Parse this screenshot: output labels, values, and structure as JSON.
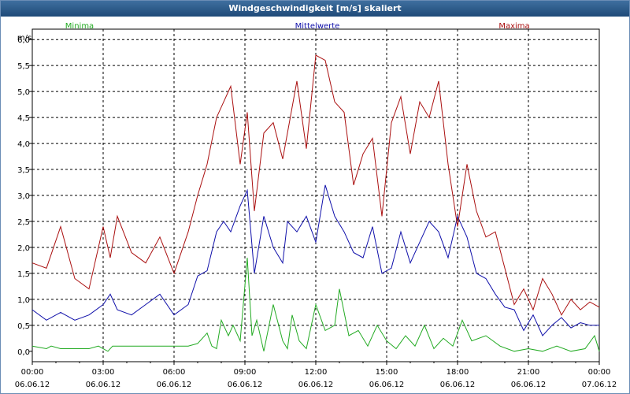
{
  "window": {
    "title": "Windgeschwindigkeit [m/s] skaliert"
  },
  "chart_data": {
    "type": "line",
    "title": "Windgeschwindigkeit [m/s] skaliert",
    "ylabel": "m/s",
    "ylim": [
      -0.2,
      6.2
    ],
    "xlim": [
      0,
      24
    ],
    "grid": true,
    "legend_position": "top",
    "y_ticks": [
      "0,0",
      "0,5",
      "1,0",
      "1,5",
      "2,0",
      "2,5",
      "3,0",
      "3,5",
      "4,0",
      "4,5",
      "5,0",
      "5,5",
      "6,0"
    ],
    "x_ticks": [
      {
        "time": "00:00",
        "date": "06.06.12"
      },
      {
        "time": "03:00",
        "date": "06.06.12"
      },
      {
        "time": "06:00",
        "date": "06.06.12"
      },
      {
        "time": "09:00",
        "date": "06.06.12"
      },
      {
        "time": "12:00",
        "date": "06.06.12"
      },
      {
        "time": "15:00",
        "date": "06.06.12"
      },
      {
        "time": "18:00",
        "date": "06.06.12"
      },
      {
        "time": "21:00",
        "date": "06.06.12"
      },
      {
        "time": "00:00",
        "date": "07.06.12"
      }
    ],
    "series": [
      {
        "name": "Minima",
        "color": "#22aa22",
        "x": [
          0,
          0.6,
          0.8,
          1.2,
          2.4,
          2.8,
          3.2,
          3.4,
          4,
          5,
          6,
          6.6,
          7,
          7.4,
          7.6,
          7.8,
          8,
          8.3,
          8.5,
          8.8,
          9.1,
          9.3,
          9.5,
          9.8,
          10.2,
          10.6,
          10.8,
          11,
          11.3,
          11.6,
          12,
          12.4,
          12.8,
          13,
          13.4,
          13.8,
          14.2,
          14.6,
          15,
          15.4,
          15.8,
          16.2,
          16.6,
          17,
          17.4,
          17.8,
          18.2,
          18.6,
          19.2,
          19.8,
          20.4,
          21,
          21.6,
          22.2,
          22.8,
          23.4,
          23.8,
          24
        ],
        "values": [
          0.1,
          0.05,
          0.1,
          0.05,
          0.05,
          0.1,
          0,
          0.1,
          0.1,
          0.1,
          0.1,
          0.1,
          0.15,
          0.35,
          0.1,
          0.05,
          0.6,
          0.3,
          0.5,
          0.2,
          1.8,
          0.3,
          0.6,
          0,
          0.9,
          0.2,
          0.05,
          0.7,
          0.2,
          0.05,
          0.9,
          0.4,
          0.5,
          1.2,
          0.3,
          0.4,
          0.1,
          0.5,
          0.2,
          0.05,
          0.3,
          0.1,
          0.5,
          0.05,
          0.25,
          0.1,
          0.6,
          0.2,
          0.3,
          0.1,
          0,
          0.05,
          0,
          0.1,
          0,
          0.05,
          0.3,
          0
        ]
      },
      {
        "name": "Mittelwerte",
        "color": "#1010aa",
        "x": [
          0,
          0.6,
          1.2,
          1.8,
          2.4,
          3,
          3.3,
          3.6,
          4.2,
          4.8,
          5.4,
          6,
          6.6,
          7,
          7.4,
          7.8,
          8.1,
          8.4,
          8.8,
          9.1,
          9.4,
          9.8,
          10.2,
          10.6,
          10.8,
          11.2,
          11.6,
          12,
          12.4,
          12.8,
          13.2,
          13.6,
          14,
          14.4,
          14.8,
          15.2,
          15.6,
          16,
          16.4,
          16.8,
          17.2,
          17.6,
          18,
          18.4,
          18.8,
          19.2,
          19.6,
          20,
          20.4,
          20.8,
          21.2,
          21.6,
          22,
          22.4,
          22.8,
          23.2,
          23.6,
          24
        ],
        "values": [
          0.8,
          0.6,
          0.75,
          0.6,
          0.7,
          0.9,
          1.1,
          0.8,
          0.7,
          0.9,
          1.1,
          0.7,
          0.9,
          1.45,
          1.55,
          2.3,
          2.5,
          2.3,
          2.8,
          3.1,
          1.5,
          2.6,
          2.0,
          1.7,
          2.5,
          2.3,
          2.6,
          2.1,
          3.2,
          2.6,
          2.3,
          1.9,
          1.8,
          2.4,
          1.5,
          1.6,
          2.3,
          1.7,
          2.1,
          2.5,
          2.3,
          1.8,
          2.6,
          2.2,
          1.5,
          1.4,
          1.1,
          0.85,
          0.8,
          0.4,
          0.7,
          0.3,
          0.5,
          0.65,
          0.45,
          0.55,
          0.5,
          0.5
        ]
      },
      {
        "name": "Maxima",
        "color": "#aa1010",
        "x": [
          0,
          0.6,
          1.2,
          1.8,
          2.4,
          3,
          3.3,
          3.6,
          4.2,
          4.8,
          5.4,
          6,
          6.6,
          7,
          7.4,
          7.8,
          8.1,
          8.4,
          8.8,
          9.1,
          9.4,
          9.8,
          10.2,
          10.6,
          10.8,
          11.2,
          11.6,
          12,
          12.4,
          12.8,
          13.2,
          13.6,
          14,
          14.4,
          14.8,
          15.2,
          15.6,
          16,
          16.4,
          16.8,
          17.2,
          17.6,
          18,
          18.4,
          18.8,
          19.2,
          19.6,
          20,
          20.4,
          20.8,
          21.2,
          21.6,
          22,
          22.4,
          22.8,
          23.2,
          23.6,
          24
        ],
        "values": [
          1.7,
          1.6,
          2.4,
          1.4,
          1.2,
          2.4,
          1.8,
          2.6,
          1.9,
          1.7,
          2.2,
          1.5,
          2.3,
          3.0,
          3.6,
          4.5,
          4.8,
          5.1,
          3.6,
          4.6,
          2.7,
          4.2,
          4.4,
          3.7,
          4.2,
          5.2,
          3.9,
          5.7,
          5.6,
          4.8,
          4.6,
          3.2,
          3.8,
          4.1,
          2.6,
          4.4,
          4.9,
          3.8,
          4.8,
          4.5,
          5.2,
          3.6,
          2.4,
          3.6,
          2.7,
          2.2,
          2.3,
          1.6,
          0.9,
          1.2,
          0.8,
          1.4,
          1.1,
          0.7,
          1.0,
          0.8,
          0.95,
          0.85
        ]
      }
    ]
  }
}
